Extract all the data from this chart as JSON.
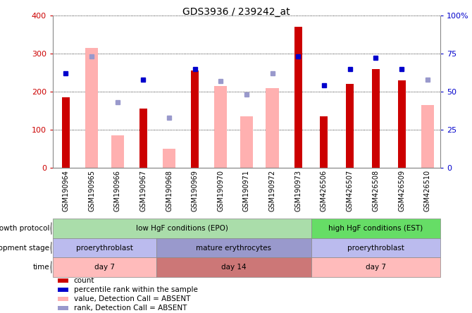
{
  "title": "GDS3936 / 239242_at",
  "samples": [
    "GSM190964",
    "GSM190965",
    "GSM190966",
    "GSM190967",
    "GSM190968",
    "GSM190969",
    "GSM190970",
    "GSM190971",
    "GSM190972",
    "GSM190973",
    "GSM426506",
    "GSM426507",
    "GSM426508",
    "GSM426509",
    "GSM426510"
  ],
  "count_red": [
    185,
    null,
    null,
    155,
    null,
    255,
    null,
    null,
    null,
    370,
    135,
    220,
    260,
    230,
    null
  ],
  "value_pink": [
    null,
    315,
    85,
    null,
    50,
    null,
    215,
    135,
    210,
    null,
    null,
    null,
    null,
    null,
    165
  ],
  "rank_blue_dark": [
    62,
    null,
    null,
    58,
    null,
    65,
    null,
    null,
    null,
    73,
    54,
    65,
    72,
    65,
    null
  ],
  "rank_blue_light": [
    null,
    73,
    43,
    null,
    33,
    null,
    57,
    48,
    62,
    null,
    null,
    null,
    null,
    null,
    58
  ],
  "ylim_left": [
    0,
    400
  ],
  "ylim_right": [
    0,
    100
  ],
  "yticks_left": [
    0,
    100,
    200,
    300,
    400
  ],
  "yticks_right": [
    0,
    25,
    50,
    75,
    100
  ],
  "ytick_labels_right": [
    "0",
    "25",
    "50",
    "75",
    "100%"
  ],
  "ytick_labels_left": [
    "0",
    "100",
    "200",
    "300",
    "400"
  ],
  "left_axis_color": "#cc0000",
  "right_axis_color": "#0000cc",
  "bar_red_color": "#cc0000",
  "bar_pink_color": "#ffb0b0",
  "dot_blue_dark": "#0000cc",
  "dot_blue_light": "#9999cc",
  "bg_color": "#ffffff",
  "plot_bg": "#ffffff",
  "grid_color": "#000000",
  "growth_protocol_label": "growth protocol",
  "development_stage_label": "development stage",
  "time_label": "time",
  "groups": [
    {
      "label": "low HgF conditions (EPO)",
      "start": 0,
      "end": 9,
      "color": "#aaddaa"
    },
    {
      "label": "high HgF conditions (EST)",
      "start": 10,
      "end": 14,
      "color": "#66dd66"
    }
  ],
  "dev_stage_groups": [
    {
      "label": "proerythroblast",
      "start": 0,
      "end": 3,
      "color": "#bbbbee"
    },
    {
      "label": "mature erythrocytes",
      "start": 4,
      "end": 9,
      "color": "#9999cc"
    },
    {
      "label": "proerythroblast",
      "start": 10,
      "end": 14,
      "color": "#bbbbee"
    }
  ],
  "time_groups": [
    {
      "label": "day 7",
      "start": 0,
      "end": 3,
      "color": "#ffbbbb"
    },
    {
      "label": "day 14",
      "start": 4,
      "end": 9,
      "color": "#cc7777"
    },
    {
      "label": "day 7",
      "start": 10,
      "end": 14,
      "color": "#ffbbbb"
    }
  ],
  "legend_items": [
    {
      "color": "#cc0000",
      "label": "count"
    },
    {
      "color": "#0000cc",
      "label": "percentile rank within the sample"
    },
    {
      "color": "#ffb0b0",
      "label": "value, Detection Call = ABSENT"
    },
    {
      "color": "#9999cc",
      "label": "rank, Detection Call = ABSENT"
    }
  ]
}
